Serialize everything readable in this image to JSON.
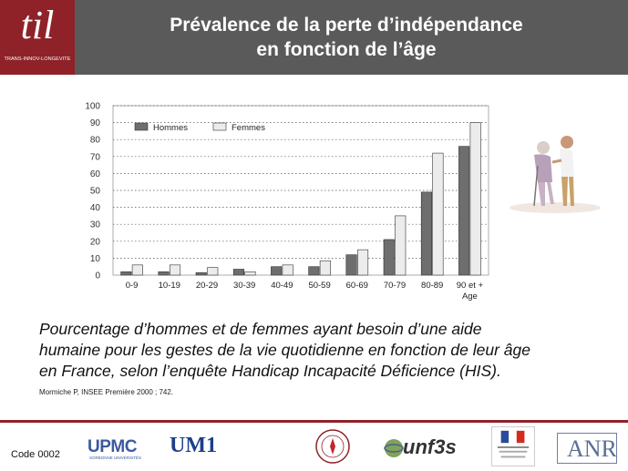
{
  "header": {
    "logo_text": "til",
    "logo_caption": "TRANS-INNOV-LONGEVITE",
    "title_line1": "Prévalence de la perte d’indépendance",
    "title_line2": "en fonction de l’âge"
  },
  "chart_data": {
    "type": "bar",
    "categories": [
      "0-9",
      "10-19",
      "20-29",
      "30-39",
      "40-49",
      "50-59",
      "60-69",
      "70-79",
      "80-89",
      "90 et +"
    ],
    "series": [
      {
        "name": "Hommes",
        "color": "#6e6e6e",
        "values": [
          2,
          2,
          1.5,
          3.5,
          5,
          5,
          12,
          21,
          49,
          76
        ]
      },
      {
        "name": "Femmes",
        "color": "#ececec",
        "values": [
          6,
          6,
          4.5,
          2,
          6,
          8.5,
          15,
          35,
          72,
          90
        ]
      }
    ],
    "xlabel": "Age",
    "ylabel": "",
    "yticks": [
      0,
      10,
      20,
      30,
      40,
      50,
      60,
      70,
      80,
      90,
      100
    ],
    "ylim": [
      0,
      100
    ],
    "grid": "horizontal dotted",
    "legend": "top-left"
  },
  "caption": {
    "line1": "Pourcentage d’hommes et de femmes ayant besoin d’une aide",
    "line2": "humaine pour les gestes de la vie quotidienne en fonction de leur âge",
    "line3": "en France, selon l’enquête Handicap Incapacité Déficience (HIS).",
    "reference": "Mormiche P, INSEE Première 2000 ; 742."
  },
  "footer": {
    "code": "Code 0002",
    "upmc": "UPMC",
    "upmc_sub": "SORBONNE UNIVERSITÉS",
    "um1": "UM1",
    "unf3s": "unf3s",
    "anr": "ANR"
  }
}
